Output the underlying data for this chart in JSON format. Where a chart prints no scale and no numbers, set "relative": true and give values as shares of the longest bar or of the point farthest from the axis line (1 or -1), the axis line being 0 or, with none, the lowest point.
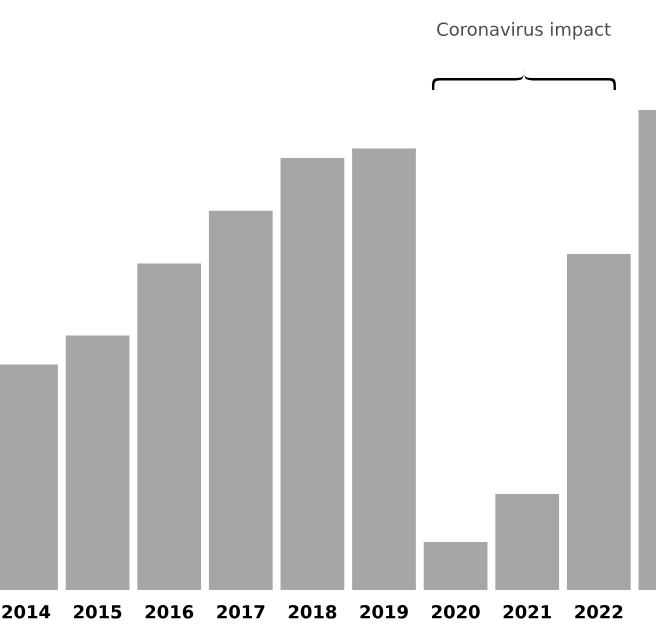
{
  "chart_data": {
    "type": "bar",
    "relative": true,
    "color": "#a6a6a6",
    "categories": [
      "2014",
      "2015",
      "2016",
      "2017",
      "2018",
      "2019",
      "2020",
      "2021",
      "2022",
      null
    ],
    "values": [
      0.47,
      0.53,
      0.68,
      0.79,
      0.9,
      0.92,
      0.1,
      0.2,
      0.7,
      1.0
    ],
    "annotations": [
      "Coronavirus impact"
    ]
  }
}
